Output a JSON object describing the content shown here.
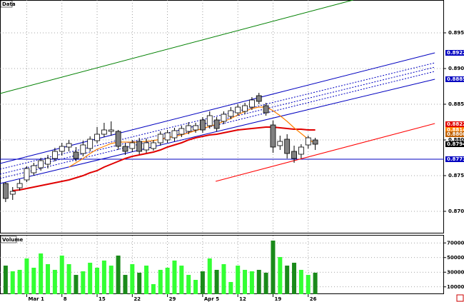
{
  "chart_data": {
    "type": "candlestick",
    "title": "Data",
    "categories": [
      null,
      null,
      null,
      "Mar 1",
      null,
      null,
      null,
      null,
      "8",
      null,
      null,
      null,
      null,
      "15",
      null,
      null,
      null,
      null,
      "22",
      null,
      null,
      null,
      null,
      "29",
      null,
      null,
      null,
      null,
      "Apr 5",
      null,
      null,
      null,
      null,
      "12",
      null,
      null,
      null,
      null,
      "19",
      null,
      null,
      null,
      null,
      "26",
      null
    ],
    "open": [
      0.8739,
      0.8724,
      0.8733,
      0.8744,
      0.8754,
      0.8761,
      0.8766,
      0.8774,
      0.8784,
      0.879,
      0.8783,
      0.8781,
      0.8788,
      0.8799,
      0.8808,
      0.8812,
      0.8812,
      0.8791,
      0.8788,
      0.8798,
      0.8786,
      0.8788,
      0.8796,
      0.88,
      0.8803,
      0.8808,
      0.8812,
      0.8814,
      0.8828,
      0.882,
      0.8828,
      0.8826,
      0.8833,
      0.8838,
      0.884,
      0.8846,
      0.8862,
      0.8848,
      0.8821,
      0.8792,
      0.8801,
      0.8784,
      0.878,
      0.8793,
      0.88
    ],
    "high": [
      0.8741,
      0.8734,
      0.8745,
      0.8763,
      0.8768,
      0.8775,
      0.8779,
      0.8789,
      0.8796,
      0.88,
      0.879,
      0.8799,
      0.8805,
      0.8818,
      0.8824,
      0.8826,
      0.8814,
      0.8795,
      0.88,
      0.8803,
      0.8802,
      0.88,
      0.8812,
      0.8814,
      0.8817,
      0.882,
      0.8825,
      0.8824,
      0.8832,
      0.884,
      0.8832,
      0.884,
      0.8846,
      0.885,
      0.8852,
      0.886,
      0.8866,
      0.8852,
      0.8827,
      0.8806,
      0.8808,
      0.8792,
      0.8794,
      0.8806,
      0.8803
    ],
    "low": [
      0.8713,
      0.8716,
      0.8729,
      0.8741,
      0.875,
      0.8757,
      0.876,
      0.877,
      0.8778,
      0.8784,
      0.877,
      0.8777,
      0.8784,
      0.8795,
      0.8804,
      0.8806,
      0.8786,
      0.8779,
      0.8783,
      0.878,
      0.8782,
      0.8785,
      0.8792,
      0.8796,
      0.8798,
      0.8804,
      0.8808,
      0.881,
      0.881,
      0.8816,
      0.8812,
      0.8822,
      0.8829,
      0.8834,
      0.8836,
      0.8842,
      0.885,
      0.8834,
      0.8782,
      0.8786,
      0.8774,
      0.8768,
      0.8774,
      0.8788,
      0.8786
    ],
    "close": [
      0.8718,
      0.8728,
      0.8739,
      0.876,
      0.8764,
      0.8771,
      0.8774,
      0.8784,
      0.8791,
      0.8795,
      0.8774,
      0.8793,
      0.8801,
      0.8808,
      0.8814,
      0.8814,
      0.8791,
      0.8784,
      0.8796,
      0.8784,
      0.8796,
      0.8796,
      0.8808,
      0.881,
      0.8813,
      0.8816,
      0.882,
      0.882,
      0.8814,
      0.8834,
      0.8816,
      0.8836,
      0.8841,
      0.8846,
      0.8848,
      0.8856,
      0.8854,
      0.8838,
      0.879,
      0.8798,
      0.8781,
      0.8774,
      0.879,
      0.8803,
      0.8794
    ],
    "up_color": "#ffffff",
    "down_color": "#808080",
    "moving_averages": [
      {
        "color": "#e00000",
        "values": [
          null,
          0.8729,
          0.873,
          0.8732,
          0.8734,
          0.8736,
          0.8738,
          0.874,
          0.8742,
          0.8744,
          0.8747,
          0.875,
          0.8754,
          0.8757,
          0.8762,
          0.8766,
          0.877,
          0.8774,
          0.8777,
          0.8779,
          0.8781,
          0.8783,
          0.8786,
          0.879,
          0.8793,
          0.8796,
          0.88,
          0.8803,
          0.8805,
          0.8807,
          0.8808,
          0.881,
          0.8812,
          0.8814,
          0.8815,
          0.8816,
          0.8817,
          0.8818,
          0.8818,
          0.8817,
          0.8816,
          0.8815,
          0.8815,
          0.8814,
          0.8814
        ]
      },
      {
        "color": "#ff8000",
        "values": [
          null,
          null,
          null,
          null,
          null,
          null,
          null,
          null,
          null,
          0.8762,
          0.8768,
          0.8774,
          0.8781,
          0.8787,
          0.8791,
          0.8795,
          0.8797,
          0.8797,
          0.8797,
          0.8797,
          0.8798,
          0.8799,
          0.8801,
          0.8803,
          0.8805,
          0.8807,
          0.881,
          0.8813,
          0.8816,
          0.8819,
          0.8822,
          0.8826,
          0.883,
          0.8835,
          0.884,
          0.8844,
          0.8846,
          0.8846,
          0.8841,
          0.8834,
          0.8826,
          0.8817,
          0.8809,
          0.8801,
          0.8795
        ]
      }
    ],
    "trendlines": [
      {
        "color": "#008000",
        "style": "solid",
        "x": [
          -0.8,
          49.4
        ],
        "y": [
          0.8865,
          0.8996
        ]
      },
      {
        "color": "#0000c0",
        "style": "solid",
        "x": [
          -0.8,
          61
        ],
        "y": [
          0.8767,
          0.8922
        ]
      },
      {
        "color": "#0000c0",
        "style": "dotted",
        "x": [
          -0.8,
          61
        ],
        "y": [
          0.8759,
          0.8908
        ]
      },
      {
        "color": "#0000c0",
        "style": "dotted",
        "x": [
          -0.8,
          61
        ],
        "y": [
          0.8752,
          0.8902
        ]
      },
      {
        "color": "#0000c0",
        "style": "dotted",
        "x": [
          -0.8,
          61
        ],
        "y": [
          0.8746,
          0.8896
        ]
      },
      {
        "color": "#0000c0",
        "style": "solid",
        "x": [
          -0.8,
          61
        ],
        "y": [
          0.8739,
          0.8885
        ]
      },
      {
        "color": "#0000c0",
        "style": "solid",
        "x": [
          -0.8,
          62.3
        ],
        "y": [
          0.8773,
          0.8773
        ]
      },
      {
        "color": "#ff0000",
        "style": "solid",
        "x": [
          29.85,
          61
        ],
        "y": [
          0.8742,
          0.8823
        ]
      }
    ],
    "markers": [
      {
        "value": 0.8922,
        "label": "0.8922",
        "color": "#0000c0"
      },
      {
        "value": 0.8885,
        "label": "0.8885",
        "color": "#0000c0"
      },
      {
        "value": 0.8822,
        "label": "0.8822",
        "color": "#e00000"
      },
      {
        "value": 0.8814,
        "label": "0.8814",
        "color": "#ff8000"
      },
      {
        "value": 0.8808,
        "label": "0.8808",
        "color": "#c06000"
      },
      {
        "value": 0.8794,
        "label": "0.8794",
        "color": "#000000"
      },
      {
        "value": 0.8773,
        "label": "0.8773",
        "color": "#0000c0"
      }
    ],
    "xlim": [
      -0.8,
      62.3
    ],
    "ylim": [
      0.8669,
      0.8996
    ],
    "yticks": [
      {
        "value": 0.895,
        "label": "0.8950"
      },
      {
        "value": 0.89,
        "label": "0.8900"
      },
      {
        "value": 0.885,
        "label": "0.8850"
      },
      {
        "value": 0.88,
        "label": "0.8800"
      },
      {
        "value": 0.875,
        "label": "0.8750"
      },
      {
        "value": 0.87,
        "label": "0.8700"
      }
    ],
    "grid": true,
    "volume": {
      "title": "Volume",
      "up_color": "#33ff33",
      "down_color": "#1a8a1a",
      "values": [
        39000,
        31200,
        33200,
        48800,
        36100,
        55600,
        41000,
        33200,
        52700,
        41000,
        26300,
        31200,
        42900,
        36100,
        45900,
        39000,
        52700,
        26300,
        41000,
        29300,
        39000,
        13700,
        33200,
        36100,
        45900,
        39000,
        26300,
        19500,
        31200,
        48800,
        33200,
        41000,
        16600,
        39000,
        33200,
        31200,
        33200,
        29300,
        73200,
        50700,
        39000,
        42900,
        33200,
        26300,
        29300
      ],
      "ylim": [
        0,
        80000
      ],
      "yticks": [
        {
          "value": 70000,
          "label": "70000K"
        },
        {
          "value": 50000,
          "label": "50000K"
        },
        {
          "value": 30000,
          "label": "30000K"
        },
        {
          "value": 10000,
          "label": "10000K"
        }
      ]
    }
  }
}
